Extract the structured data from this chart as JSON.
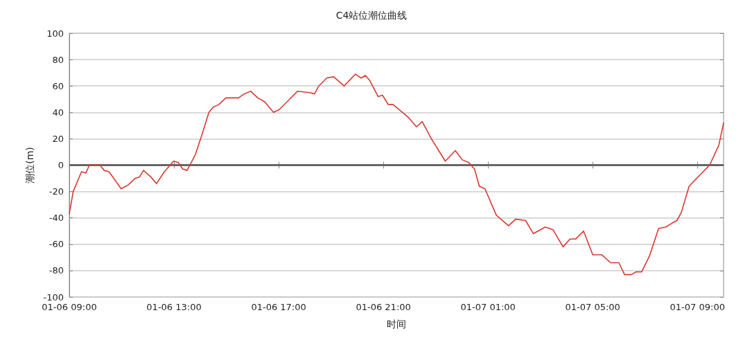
{
  "chart_data": {
    "type": "line",
    "title": "C4站位潮位曲线",
    "xlabel": "时间",
    "ylabel": "潮位(m)",
    "x": [
      "--01-06T09:00",
      "--01-06T09:09",
      "--01-06T09:28",
      "--01-06T09:38",
      "--01-06T09:46",
      "--01-06T10:10",
      "--01-06T10:20",
      "--01-06T10:31",
      "--01-06T10:59",
      "--01-06T11:15",
      "--01-06T11:31",
      "--01-06T11:41",
      "--01-06T11:50",
      "--01-06T12:07",
      "--01-06T12:20",
      "--01-06T12:38",
      "--01-06T12:59",
      "--01-06T13:10",
      "--01-06T13:20",
      "--01-06T13:30",
      "--01-06T13:49",
      "--01-06T14:04",
      "--01-06T14:20",
      "--01-06T14:30",
      "--01-06T14:43",
      "--01-06T14:59",
      "--01-06T15:28",
      "--01-06T15:41",
      "--01-06T15:56",
      "--01-06T16:12",
      "--01-06T16:28",
      "--01-06T16:48",
      "--01-06T17:01",
      "--01-06T17:25",
      "--01-06T17:43",
      "--01-06T18:11",
      "--01-06T18:22",
      "--01-06T18:32",
      "--01-06T18:50",
      "--01-06T19:06",
      "--01-06T19:30",
      "--01-06T19:56",
      "--01-06T20:09",
      "--01-06T20:19",
      "--01-06T20:29",
      "--01-06T20:48",
      "--01-06T20:58",
      "--01-06T21:11",
      "--01-06T21:22",
      "--01-06T21:58",
      "--01-06T22:16",
      "--01-06T22:29",
      "--01-06T22:50",
      "--01-06T23:22",
      "--01-06T23:45",
      "--01-07T00:01",
      "--01-07T00:16",
      "--01-07T00:29",
      "--01-07T00:40",
      "--01-07T00:53",
      "--01-07T01:19",
      "--01-07T01:47",
      "--01-07T02:03",
      "--01-07T02:26",
      "--01-07T02:44",
      "--01-07T03:11",
      "--01-07T03:29",
      "--01-07T03:52",
      "--01-07T04:08",
      "--01-07T04:21",
      "--01-07T04:39",
      "--01-07T05:00",
      "--01-07T05:21",
      "--01-07T05:41",
      "--01-07T06:00",
      "--01-07T06:13",
      "--01-07T06:29",
      "--01-07T06:39",
      "--01-07T06:52",
      "--01-07T07:10",
      "--01-07T07:31",
      "--01-07T07:47",
      "--01-07T08:02",
      "--01-07T08:13",
      "--01-07T08:23",
      "--01-07T08:41",
      "--01-07T09:10",
      "--01-07T09:28",
      "--01-07T09:49",
      "--01-07T10:00"
    ],
    "series": [
      {
        "color": "#d9382f",
        "values": [
          -37,
          -20,
          -5,
          -6,
          0,
          0,
          -4,
          -5,
          -18,
          -15,
          -10,
          -9,
          -4,
          -9,
          -14,
          -5,
          3,
          2,
          -3,
          -4,
          8,
          23,
          40,
          44,
          46,
          51,
          51,
          54,
          56,
          51,
          48,
          40,
          42,
          50,
          56,
          55,
          54,
          60,
          66,
          67,
          60,
          69,
          66,
          68,
          64,
          52,
          53,
          46,
          46,
          36,
          29,
          33,
          20,
          3,
          11,
          4,
          2,
          -3,
          -16,
          -18,
          -38,
          -46,
          -41,
          -42,
          -52,
          -47,
          -49,
          -62,
          -56,
          -56,
          -50,
          -68,
          -68,
          -74,
          -74,
          -83,
          -83,
          -81,
          -81,
          -69,
          -48,
          -47,
          -44,
          -42,
          -36,
          -16,
          -6,
          0,
          15,
          32
        ]
      }
    ],
    "xlim": [
      "--01-06T09:00",
      "--01-07T10:00"
    ],
    "xticks": [
      {
        "value": "--01-06T09:00",
        "label": "01-06 09:00"
      },
      {
        "value": "--01-06T13:00",
        "label": "01-06 13:00"
      },
      {
        "value": "--01-06T17:00",
        "label": "01-06 17:00"
      },
      {
        "value": "--01-06T21:00",
        "label": "01-06 21:00"
      },
      {
        "value": "--01-07T01:00",
        "label": "01-07 01:00"
      },
      {
        "value": "--01-07T05:00",
        "label": "01-07 05:00"
      },
      {
        "value": "--01-07T09:00",
        "label": "01-07 09:00"
      }
    ],
    "ylim": [
      -100,
      100
    ],
    "yticks": [
      -100,
      -80,
      -60,
      -40,
      -20,
      0,
      20,
      40,
      60,
      80,
      100
    ],
    "grid": "y",
    "line_style": "solid",
    "marker": "none",
    "ref_lines": [
      {
        "axis": "y",
        "value": 0,
        "color": "#666666"
      }
    ]
  }
}
